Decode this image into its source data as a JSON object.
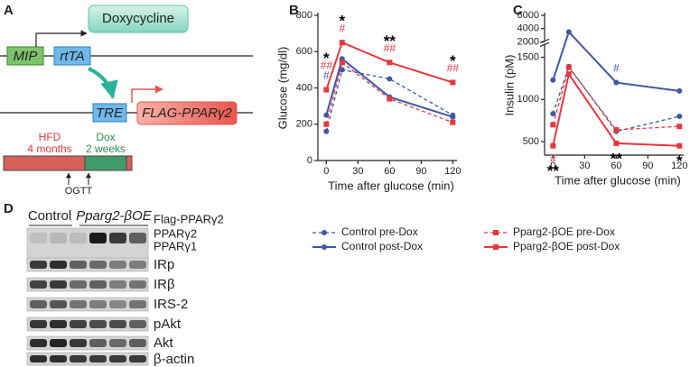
{
  "panels": [
    "A",
    "B",
    "C",
    "D"
  ],
  "diagram": {
    "mip": "MIP",
    "rtta": "rtTA",
    "doxycycline": "Doxycycline",
    "tre": "TRE",
    "transgene": "FLAG-PPARγ2",
    "hfd": "HFD",
    "hfd_duration": "4 months",
    "dox": "Dox",
    "dox_duration": "2 weeks",
    "ogtt": "OGTT"
  },
  "chart_data": [
    {
      "type": "line",
      "y_label": "Glucose (mg/dl)",
      "x_label": "Time after glucose (min)",
      "x": [
        0,
        15,
        60,
        120
      ],
      "xlim": [
        -8,
        124
      ],
      "xticks": [
        0,
        30,
        60,
        90,
        120
      ],
      "ylim": [
        0,
        800
      ],
      "yticks": [
        0,
        200,
        400,
        600,
        800
      ],
      "series": [
        {
          "name": "Control pre-Dox",
          "color": "#3f57a6",
          "dash": true,
          "marker": "circle",
          "values": [
            160,
            500,
            450,
            250
          ]
        },
        {
          "name": "Control post-Dox",
          "color": "#3f57a6",
          "dash": false,
          "marker": "circle",
          "values": [
            250,
            560,
            350,
            240
          ]
        },
        {
          "name": "Pparg2-βOE pre-Dox",
          "color": "#e8373d",
          "dash": true,
          "marker": "square",
          "values": [
            200,
            540,
            340,
            210
          ]
        },
        {
          "name": "Pparg2-βOE post-Dox",
          "color": "#e8373d",
          "dash": false,
          "marker": "square",
          "values": [
            390,
            650,
            540,
            430
          ]
        }
      ],
      "annotations": [
        {
          "x": 0,
          "text": "#",
          "color": "#3f57a6",
          "position": "above"
        },
        {
          "x": 0,
          "text": "##",
          "color": "#e8373d",
          "position": "above"
        },
        {
          "x": 0,
          "text": "*",
          "color": "#000000",
          "position": "above"
        },
        {
          "x": 15,
          "text": "#",
          "color": "#e8373d",
          "position": "above"
        },
        {
          "x": 15,
          "text": "*",
          "color": "#000000",
          "position": "above"
        },
        {
          "x": 60,
          "text": "##",
          "color": "#e8373d",
          "position": "above"
        },
        {
          "x": 60,
          "text": "**",
          "color": "#000000",
          "position": "above"
        },
        {
          "x": 120,
          "text": "##",
          "color": "#e8373d",
          "position": "above"
        },
        {
          "x": 120,
          "text": "*",
          "color": "#000000",
          "position": "above"
        }
      ]
    },
    {
      "type": "line",
      "y_label": "Insulin (pM)",
      "x_label": "Time after glucose (min)",
      "x": [
        0,
        15,
        60,
        120
      ],
      "xlim": [
        -8,
        124
      ],
      "xticks": [
        0,
        30,
        60,
        90,
        120
      ],
      "ylim": [
        340,
        6000
      ],
      "y_segments": [
        [
          340,
          1500
        ],
        [
          1500,
          2000
        ],
        [
          2000,
          6000
        ]
      ],
      "yticks": [
        500,
        1000,
        1500,
        2000,
        4000,
        6000
      ],
      "series": [
        {
          "color": "#3f57a6",
          "dash": true,
          "marker": "circle",
          "values": [
            830,
            1390,
            620,
            800
          ]
        },
        {
          "color": "#3f57a6",
          "dash": false,
          "marker": "circle",
          "values": [
            1230,
            3500,
            1200,
            1100
          ]
        },
        {
          "color": "#e8373d",
          "dash": true,
          "marker": "square",
          "values": [
            700,
            1380,
            640,
            680
          ]
        },
        {
          "color": "#e8373d",
          "dash": false,
          "marker": "square",
          "values": [
            450,
            1300,
            480,
            450
          ]
        }
      ],
      "annotations": [
        {
          "x": 0,
          "text": "#",
          "color": "#e8373d",
          "position": "below"
        },
        {
          "x": 0,
          "text": "**",
          "color": "#000000",
          "position": "below"
        },
        {
          "x": 60,
          "text": "#",
          "color": "#3f57a6",
          "position": "above"
        },
        {
          "x": 60,
          "text": "**",
          "color": "#000000",
          "position": "below"
        },
        {
          "x": 120,
          "text": "*",
          "color": "#000000",
          "position": "below"
        }
      ]
    }
  ],
  "blot": {
    "groups": [
      "Control",
      "Pparg2-βOE"
    ],
    "rows": [
      "Flag-PPARγ2",
      "PPARγ2",
      "PPARγ1",
      "IRp",
      "IRβ",
      "IRS-2",
      "pAkt",
      "Akt",
      "β-actin"
    ]
  }
}
